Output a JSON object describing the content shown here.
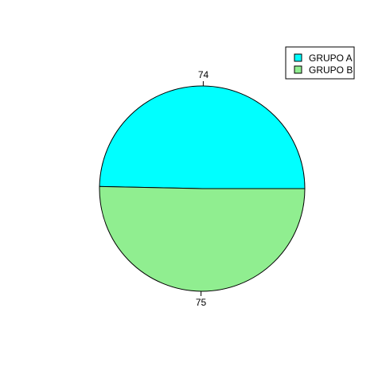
{
  "chart_data": {
    "type": "pie",
    "categories": [
      "GRUPO A",
      "GRUPO B"
    ],
    "values": [
      74,
      75
    ],
    "slice_labels": [
      "74",
      "75"
    ],
    "colors": [
      "#00FFFF",
      "#90EE90"
    ],
    "legend": {
      "placement": "top-right",
      "entries": [
        "GRUPO A",
        "GRUPO B"
      ]
    },
    "title": "",
    "start": "right",
    "direction": "counterclockwise"
  }
}
